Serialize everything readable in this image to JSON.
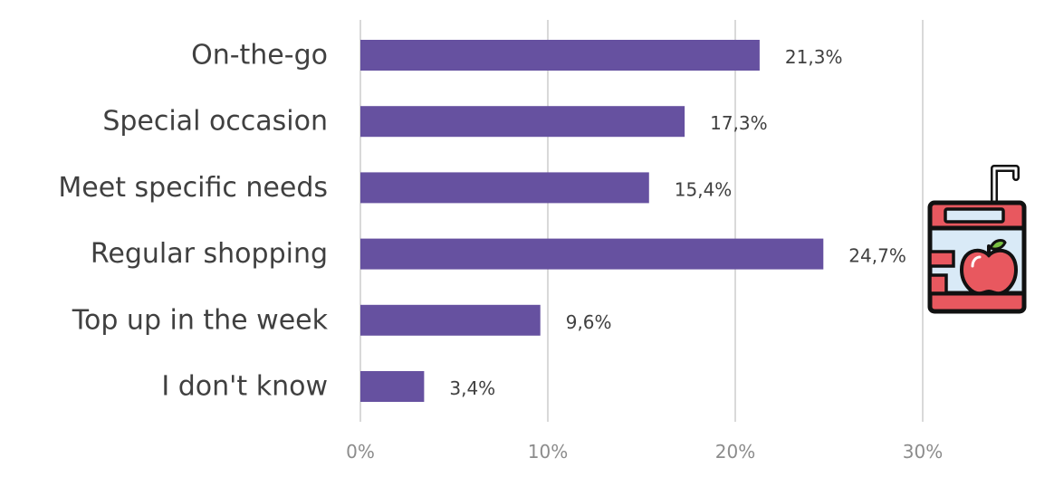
{
  "chart_data": {
    "type": "bar",
    "orientation": "horizontal",
    "categories": [
      "On-the-go",
      "Special occasion",
      "Meet specific needs",
      "Regular shopping",
      "Top up in the week",
      "I don't know"
    ],
    "values": [
      21.3,
      17.3,
      15.4,
      24.7,
      9.6,
      3.4
    ],
    "value_labels": [
      "21,3%",
      "17,3%",
      "15,4%",
      "24,7%",
      "9,6%",
      "3,4%"
    ],
    "xlim": [
      0,
      30
    ],
    "xticks": [
      0,
      10,
      20,
      30
    ],
    "xtick_labels": [
      "0%",
      "10%",
      "20%",
      "30%"
    ],
    "grid": true,
    "legend": "none",
    "bar_color": "#6651a0",
    "grid_color": "#d9d9d9"
  },
  "decoration": {
    "icon": "juice-box-apple-icon",
    "colors": {
      "box": "#e8585f",
      "panel": "#d9eaf7",
      "outline": "#111111",
      "straw": "#ffffff"
    }
  }
}
